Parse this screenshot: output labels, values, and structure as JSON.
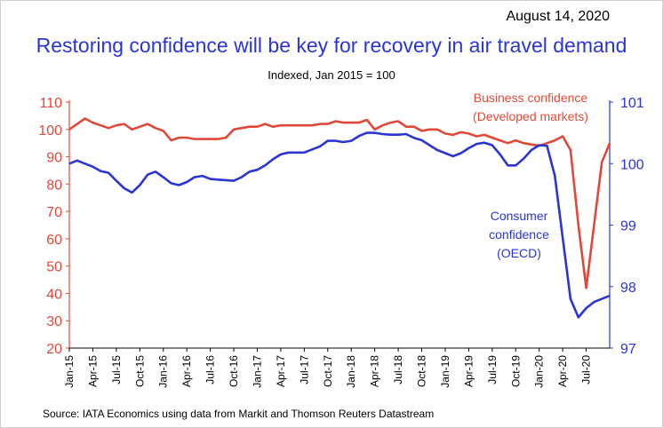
{
  "header": {
    "date": "August 14, 2020",
    "title": "Restoring confidence will be key for recovery in air travel demand",
    "subtitle": "Indexed, Jan 2015 = 100"
  },
  "footer": {
    "source": "Source:  IATA Economics using data from Markit and Thomson Reuters Datastream"
  },
  "colors": {
    "business": "#e0493a",
    "consumer": "#2b35d6"
  },
  "chart_data": {
    "type": "line",
    "title": "Restoring confidence will be key for recovery in air travel demand",
    "subtitle": "Indexed, Jan 2015 = 100",
    "x_ticks": [
      "Jan-15",
      "Apr-15",
      "Jul-15",
      "Oct-15",
      "Jan-16",
      "Apr-16",
      "Jul-16",
      "Oct-16",
      "Jan-17",
      "Apr-17",
      "Jul-17",
      "Oct-17",
      "Jan-18",
      "Apr-18",
      "Jul-18",
      "Oct-18",
      "Jan-19",
      "Apr-19",
      "Jul-19",
      "Oct-19",
      "Jan-20",
      "Apr-20",
      "Jul-20"
    ],
    "y_left": {
      "ticks": [
        20,
        30,
        40,
        50,
        60,
        70,
        80,
        90,
        100,
        110
      ],
      "lim": [
        20,
        110
      ],
      "color": "#e0493a"
    },
    "y_right": {
      "ticks": [
        97,
        98,
        99,
        100,
        101
      ],
      "lim": [
        97,
        101
      ],
      "color": "#2b35d6"
    },
    "grid": false,
    "series": [
      {
        "name_lines": [
          "Business confidence",
          "(Developed markets)"
        ],
        "axis": "left",
        "color": "#e0493a",
        "values": [
          100,
          102,
          104,
          102.5,
          101.5,
          100.5,
          101.5,
          102,
          100,
          101,
          102,
          100.5,
          99.5,
          96,
          97,
          97,
          96.5,
          96.5,
          96.5,
          96.5,
          97,
          100,
          100.5,
          101,
          101,
          102,
          101,
          101.5,
          101.5,
          101.5,
          101.5,
          101.5,
          102,
          102,
          103,
          102.5,
          102.5,
          102.5,
          103.5,
          100,
          101.5,
          102.5,
          103,
          101,
          101,
          99.5,
          100,
          100,
          98.5,
          98,
          99,
          98.5,
          97.5,
          98,
          97,
          96,
          95,
          96,
          95,
          94.5,
          94,
          95,
          96,
          97.5,
          92.5,
          65,
          42,
          65,
          88,
          95
        ]
      },
      {
        "name_lines": [
          "Consumer",
          "confidence",
          "(OECD)"
        ],
        "axis": "right",
        "color": "#2b35d6",
        "values": [
          100,
          100.05,
          100,
          99.95,
          99.88,
          99.85,
          99.72,
          99.6,
          99.53,
          99.65,
          99.82,
          99.87,
          99.78,
          99.68,
          99.65,
          99.7,
          99.78,
          99.8,
          99.75,
          99.74,
          99.73,
          99.72,
          99.78,
          99.87,
          99.9,
          99.97,
          100.07,
          100.15,
          100.18,
          100.18,
          100.18,
          100.23,
          100.28,
          100.37,
          100.37,
          100.35,
          100.37,
          100.45,
          100.5,
          100.5,
          100.48,
          100.47,
          100.47,
          100.48,
          100.42,
          100.38,
          100.3,
          100.22,
          100.17,
          100.12,
          100.17,
          100.25,
          100.32,
          100.34,
          100.3,
          100.15,
          99.97,
          99.97,
          100.08,
          100.22,
          100.3,
          100.29,
          99.8,
          98.8,
          97.8,
          97.5,
          97.65,
          97.75,
          97.8,
          97.85
        ]
      }
    ]
  }
}
